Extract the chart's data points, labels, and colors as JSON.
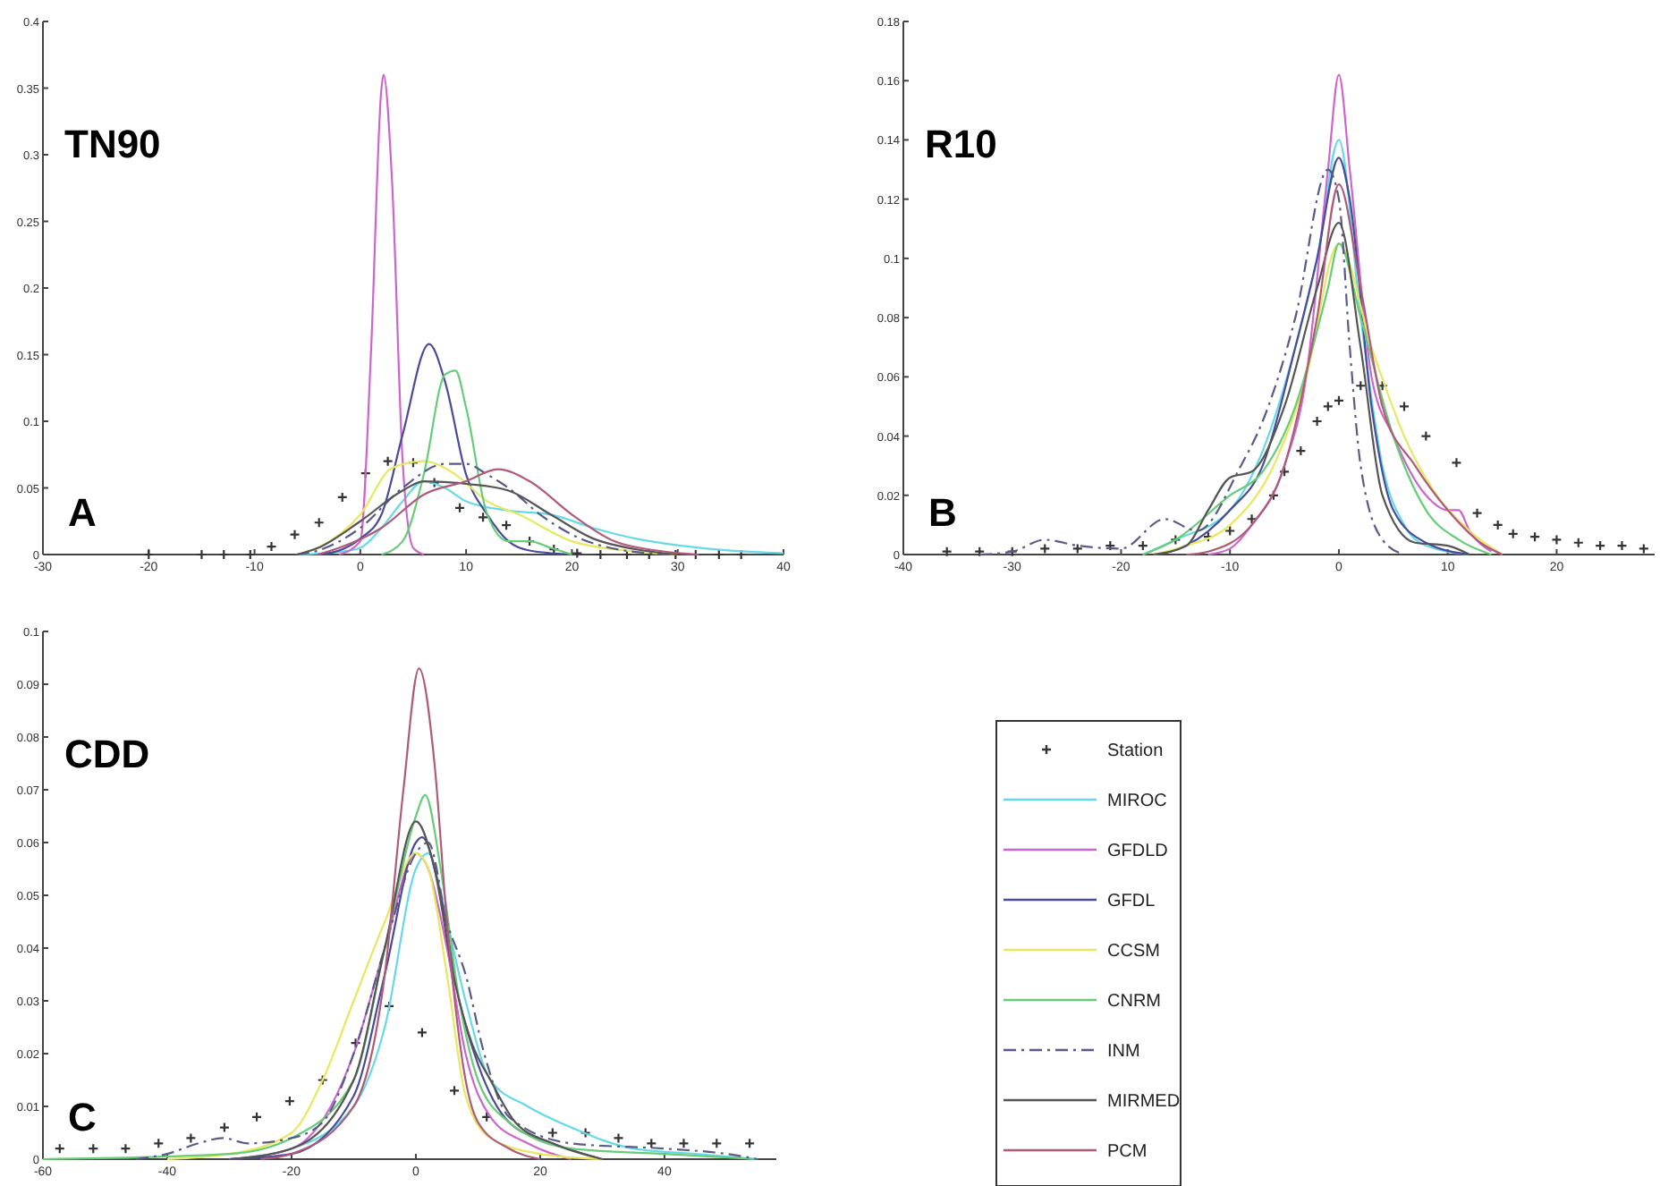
{
  "chart_data": [
    {
      "type": "line",
      "title": "TN90",
      "annotations": [
        "A"
      ],
      "xlim": [
        -30,
        40
      ],
      "xticks": [
        -30,
        -20,
        -10,
        0,
        10,
        20,
        30,
        40
      ],
      "ylim": [
        0,
        0.4
      ],
      "yticks": [
        0,
        0.05,
        0.1,
        0.15,
        0.2,
        0.25,
        0.3,
        0.35,
        0.4
      ],
      "series": [
        {
          "type": "scatter",
          "marker": "cross",
          "color": "#333333",
          "x": [
            -20,
            -15,
            -12.9,
            -10.4,
            -8.4,
            -6.2,
            -3.9,
            -1.7,
            0.5,
            2.6,
            5,
            7,
            9.4,
            11.6,
            13.8,
            16,
            18.3,
            20.5,
            22.7,
            25.2,
            27.3,
            29.8,
            31.7,
            33.9,
            36
          ],
          "values": [
            0,
            0,
            0,
            0,
            0.006,
            0.015,
            0.024,
            0.043,
            0.061,
            0.07,
            0.069,
            0.054,
            0.035,
            0.028,
            0.022,
            0.01,
            0.004,
            0.001,
            0,
            0,
            0,
            0,
            0,
            0,
            0
          ]
        },
        {
          "color": "#66d9e8",
          "x": [
            -6,
            -2,
            0,
            2,
            4,
            6,
            8,
            10,
            14,
            18,
            22,
            26,
            30,
            35,
            40
          ],
          "values": [
            0,
            0.002,
            0.005,
            0.02,
            0.04,
            0.055,
            0.05,
            0.04,
            0.033,
            0.03,
            0.02,
            0.012,
            0.007,
            0.003,
            0.001
          ]
        },
        {
          "color": "#cc66cc",
          "x": [
            -2,
            0,
            1,
            2,
            2.2,
            3,
            4,
            5,
            6
          ],
          "values": [
            0,
            0.01,
            0.15,
            0.35,
            0.36,
            0.28,
            0.07,
            0.005,
            0
          ]
        },
        {
          "color": "#4a4a9a",
          "x": [
            -4,
            -2,
            0,
            2,
            4,
            6.5,
            8,
            10,
            12,
            14,
            16,
            20
          ],
          "values": [
            0,
            0.003,
            0.012,
            0.03,
            0.09,
            0.158,
            0.13,
            0.06,
            0.03,
            0.01,
            0.003,
            0
          ]
        },
        {
          "color": "#e8e860",
          "x": [
            -6,
            -4,
            0,
            3,
            6,
            9,
            12,
            15,
            20,
            25,
            30
          ],
          "values": [
            0,
            0.005,
            0.03,
            0.065,
            0.07,
            0.06,
            0.04,
            0.03,
            0.01,
            0.003,
            0
          ]
        },
        {
          "color": "#66cc77",
          "x": [
            2,
            4,
            6,
            8,
            9,
            10,
            12,
            14,
            16,
            18,
            20
          ],
          "values": [
            0,
            0.01,
            0.06,
            0.135,
            0.138,
            0.11,
            0.03,
            0.01,
            0.01,
            0.005,
            0
          ]
        },
        {
          "color": "#5a5a8a",
          "line_style": "dashed",
          "x": [
            -6,
            -4,
            0,
            4,
            8,
            10,
            12,
            14,
            17,
            20,
            25,
            30
          ],
          "values": [
            0,
            0.003,
            0.02,
            0.05,
            0.068,
            0.068,
            0.06,
            0.05,
            0.03,
            0.015,
            0.003,
            0
          ]
        },
        {
          "color": "#555555",
          "x": [
            -6,
            -4,
            0,
            4,
            6,
            10,
            14,
            18,
            22,
            26,
            30
          ],
          "values": [
            0,
            0.005,
            0.025,
            0.048,
            0.055,
            0.053,
            0.048,
            0.03,
            0.012,
            0.004,
            0
          ]
        },
        {
          "color": "#b05a7a",
          "x": [
            -4,
            -2,
            2,
            6,
            10,
            13,
            16,
            20,
            24,
            28,
            32
          ],
          "values": [
            0,
            0.005,
            0.02,
            0.045,
            0.055,
            0.064,
            0.055,
            0.03,
            0.01,
            0.003,
            0
          ]
        }
      ]
    },
    {
      "type": "line",
      "title": "R10",
      "annotations": [
        "B"
      ],
      "xlim": [
        -40,
        29
      ],
      "xticks": [
        -40,
        -30,
        -20,
        -10,
        0,
        10,
        20
      ],
      "ylim": [
        0,
        0.18
      ],
      "yticks": [
        0,
        0.02,
        0.04,
        0.06,
        0.08,
        0.1,
        0.12,
        0.14,
        0.16,
        0.18
      ],
      "series": [
        {
          "type": "scatter",
          "marker": "cross",
          "color": "#333333",
          "x": [
            -36,
            -33,
            -30,
            -27,
            -24,
            -21,
            -18,
            -15,
            -12,
            -10,
            -8,
            -6,
            -5,
            -3.5,
            -2,
            -1,
            0,
            2,
            4,
            6,
            8,
            10.8,
            12.7,
            14.6,
            16,
            18,
            20,
            22,
            24,
            26,
            28
          ],
          "values": [
            0.001,
            0.001,
            0.001,
            0.002,
            0.002,
            0.003,
            0.003,
            0.005,
            0.006,
            0.008,
            0.012,
            0.02,
            0.028,
            0.035,
            0.045,
            0.05,
            0.052,
            0.057,
            0.057,
            0.05,
            0.04,
            0.031,
            0.014,
            0.01,
            0.007,
            0.006,
            0.005,
            0.004,
            0.003,
            0.003,
            0.002
          ]
        },
        {
          "color": "#66d9e8",
          "x": [
            -18,
            -15,
            -10,
            -7,
            -4,
            -2,
            0,
            2,
            4,
            6,
            8,
            12
          ],
          "values": [
            0,
            0.005,
            0.015,
            0.035,
            0.07,
            0.1,
            0.14,
            0.08,
            0.03,
            0.01,
            0.003,
            0
          ]
        },
        {
          "color": "#cc66cc",
          "x": [
            -12,
            -10,
            -8,
            -5,
            -3,
            -1,
            0,
            1,
            3,
            5,
            8,
            10,
            11,
            12,
            14
          ],
          "values": [
            0,
            0.002,
            0.01,
            0.03,
            0.06,
            0.13,
            0.162,
            0.13,
            0.06,
            0.04,
            0.02,
            0.015,
            0.015,
            0.008,
            0.001
          ]
        },
        {
          "color": "#4a4a9a",
          "x": [
            -17,
            -14,
            -10,
            -7,
            -4,
            -2,
            0,
            1,
            3,
            5,
            8,
            12
          ],
          "values": [
            0,
            0.003,
            0.015,
            0.03,
            0.07,
            0.1,
            0.134,
            0.12,
            0.05,
            0.015,
            0.004,
            0
          ]
        },
        {
          "color": "#e8e860",
          "x": [
            -17,
            -14,
            -10,
            -6,
            -3,
            0,
            3,
            6,
            9,
            12,
            15
          ],
          "values": [
            0,
            0.003,
            0.01,
            0.03,
            0.06,
            0.105,
            0.07,
            0.04,
            0.02,
            0.008,
            0
          ]
        },
        {
          "color": "#66cc77",
          "x": [
            -18,
            -15,
            -10,
            -7,
            -4,
            -1,
            0,
            2,
            5,
            8,
            11,
            14
          ],
          "values": [
            0,
            0.005,
            0.02,
            0.028,
            0.05,
            0.09,
            0.105,
            0.08,
            0.04,
            0.015,
            0.005,
            0
          ]
        },
        {
          "color": "#5a5a8a",
          "line_style": "dashed",
          "x": [
            -33,
            -30,
            -27,
            -24,
            -20,
            -16,
            -13,
            -9,
            -7,
            -4,
            -1,
            0,
            1,
            2,
            4,
            6
          ],
          "values": [
            0,
            0.001,
            0.005,
            0.003,
            0.002,
            0.012,
            0.008,
            0.03,
            0.045,
            0.08,
            0.13,
            0.12,
            0.07,
            0.03,
            0.005,
            0
          ]
        },
        {
          "color": "#555555",
          "x": [
            -17,
            -14,
            -12,
            -10,
            -8,
            -5,
            -2,
            0,
            2,
            4,
            7,
            10,
            12
          ],
          "values": [
            0,
            0.003,
            0.015,
            0.026,
            0.028,
            0.05,
            0.09,
            0.112,
            0.07,
            0.02,
            0.004,
            0.003,
            0
          ]
        },
        {
          "color": "#b05a7a",
          "x": [
            -14,
            -12,
            -8,
            -5,
            -2,
            0,
            2,
            4,
            7,
            10,
            13,
            15
          ],
          "values": [
            0,
            0.001,
            0.01,
            0.03,
            0.08,
            0.125,
            0.09,
            0.05,
            0.03,
            0.015,
            0.004,
            0
          ]
        }
      ]
    },
    {
      "type": "line",
      "title": "CDD",
      "annotations": [
        "C"
      ],
      "legend": "right",
      "xlim": [
        -60,
        58
      ],
      "xticks": [
        -60,
        -40,
        -20,
        0,
        20,
        40
      ],
      "ylim": [
        0,
        0.1
      ],
      "yticks": [
        0,
        0.01,
        0.02,
        0.03,
        0.04,
        0.05,
        0.06,
        0.07,
        0.08,
        0.09,
        0.1
      ],
      "series": [
        {
          "name": "Station",
          "type": "scatter",
          "marker": "cross",
          "color": "#333333",
          "x": [
            -57.3,
            -51.9,
            -46.7,
            -41.4,
            -36.2,
            -30.8,
            -25.6,
            -20.3,
            -15,
            -9.7,
            -4.3,
            1,
            6.2,
            11.4,
            22,
            27.3,
            32.6,
            37.9,
            43.1,
            48.4,
            53.7
          ],
          "values": [
            0.002,
            0.002,
            0.002,
            0.003,
            0.004,
            0.006,
            0.008,
            0.011,
            0.015,
            0.022,
            0.029,
            0.024,
            0.013,
            0.008,
            0.005,
            0.005,
            0.004,
            0.003,
            0.003,
            0.003,
            0.003
          ]
        },
        {
          "name": "MIROC",
          "color": "#66d9e8",
          "x": [
            -30,
            -20,
            -10,
            -5,
            0,
            2,
            5,
            8,
            12,
            18,
            25,
            35,
            45,
            55
          ],
          "values": [
            0,
            0.002,
            0.01,
            0.025,
            0.055,
            0.058,
            0.045,
            0.03,
            0.015,
            0.01,
            0.006,
            0.002,
            0.001,
            0
          ]
        },
        {
          "name": "GFDLD",
          "color": "#cc66cc",
          "x": [
            -30,
            -20,
            -10,
            -5,
            0,
            2,
            5,
            8,
            12,
            18,
            25
          ],
          "values": [
            0,
            0.002,
            0.02,
            0.04,
            0.058,
            0.055,
            0.04,
            0.02,
            0.008,
            0.003,
            0
          ]
        },
        {
          "name": "GFDL",
          "color": "#4a4a9a",
          "x": [
            -30,
            -20,
            -10,
            -5,
            0,
            1,
            4,
            7,
            10,
            15,
            22,
            30
          ],
          "values": [
            0,
            0.001,
            0.012,
            0.035,
            0.06,
            0.061,
            0.05,
            0.03,
            0.018,
            0.007,
            0.003,
            0
          ]
        },
        {
          "name": "CCSM",
          "color": "#e8e860",
          "x": [
            -40,
            -30,
            -20,
            -15,
            -10,
            -5,
            0,
            2,
            5,
            8,
            12,
            20,
            30
          ],
          "values": [
            0,
            0.001,
            0.005,
            0.015,
            0.03,
            0.045,
            0.058,
            0.055,
            0.035,
            0.012,
            0.004,
            0.001,
            0
          ]
        },
        {
          "name": "CNRM",
          "color": "#66cc77",
          "x": [
            -60,
            -30,
            -20,
            -10,
            -5,
            0,
            1.5,
            4,
            7,
            10,
            15,
            25,
            40,
            55
          ],
          "values": [
            0,
            0.001,
            0.004,
            0.015,
            0.04,
            0.065,
            0.069,
            0.055,
            0.03,
            0.015,
            0.007,
            0.002,
            0.001,
            0
          ]
        },
        {
          "name": "INM",
          "color": "#5a5a8a",
          "line_style": "dashed",
          "x": [
            -45,
            -40,
            -35,
            -31,
            -27,
            -20,
            -15,
            -10,
            -5,
            0,
            2,
            5,
            8,
            11,
            15,
            25,
            40,
            50,
            55
          ],
          "values": [
            0,
            0.001,
            0.003,
            0.004,
            0.003,
            0.004,
            0.007,
            0.02,
            0.04,
            0.058,
            0.06,
            0.045,
            0.035,
            0.02,
            0.008,
            0.003,
            0.002,
            0.001,
            0
          ]
        },
        {
          "name": "MIRMED",
          "color": "#555555",
          "x": [
            -30,
            -20,
            -10,
            -5,
            0,
            3,
            6,
            9,
            12,
            16,
            22,
            30
          ],
          "values": [
            0,
            0.002,
            0.015,
            0.04,
            0.064,
            0.055,
            0.035,
            0.022,
            0.015,
            0.007,
            0.003,
            0
          ]
        },
        {
          "name": "PCM",
          "color": "#b05a7a",
          "x": [
            -25,
            -20,
            -10,
            -5,
            -2,
            0.5,
            3,
            5,
            8,
            10,
            15,
            20
          ],
          "values": [
            0,
            0.001,
            0.01,
            0.035,
            0.07,
            0.093,
            0.075,
            0.045,
            0.015,
            0.007,
            0.002,
            0
          ]
        }
      ]
    }
  ]
}
